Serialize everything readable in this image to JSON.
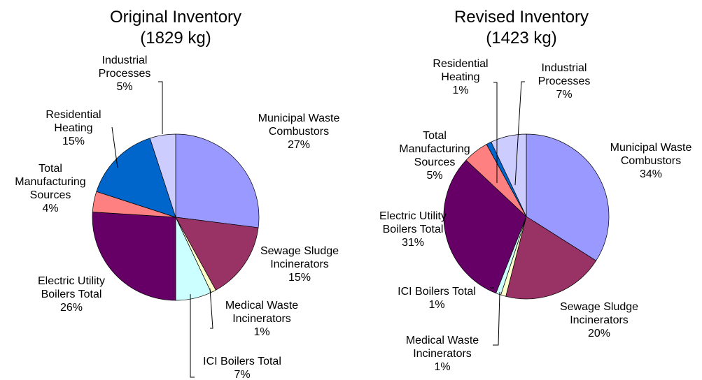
{
  "chart_data": [
    {
      "type": "pie",
      "title": "Original Inventory",
      "subtitle": "(1829 kg)",
      "categories": [
        "Municipal Waste Combustors",
        "Sewage Sludge Incinerators",
        "Medical Waste Incinerators",
        "ICI Boilers Total",
        "Electric Utility Boilers Total",
        "Total Manufacturing Sources",
        "Residential Heating",
        "Industrial Processes"
      ],
      "values": [
        27,
        15,
        1,
        7,
        26,
        4,
        15,
        5
      ],
      "value_labels": [
        "27%",
        "15%",
        "1%",
        "7%",
        "26%",
        "4%",
        "15%",
        "5%"
      ],
      "colors": [
        "#9999ff",
        "#993366",
        "#ffffcc",
        "#ccffff",
        "#660066",
        "#ff8080",
        "#0066cc",
        "#ccccff"
      ]
    },
    {
      "type": "pie",
      "title": "Revised Inventory",
      "subtitle": "(1423 kg)",
      "categories": [
        "Municipal Waste Combustors",
        "Sewage Sludge Incinerators",
        "Medical Waste Incinerators",
        "ICI Boilers Total",
        "Electric Utility Boilers Total",
        "Total Manufacturing Sources",
        "Residential Heating",
        "Industrial Processes"
      ],
      "values": [
        34,
        20,
        1,
        1,
        31,
        5,
        1,
        7
      ],
      "value_labels": [
        "34%",
        "20%",
        "1%",
        "1%",
        "31%",
        "5%",
        "1%",
        "7%"
      ],
      "colors": [
        "#9999ff",
        "#993366",
        "#ffffcc",
        "#ccffff",
        "#660066",
        "#ff8080",
        "#0066cc",
        "#ccccff"
      ]
    }
  ]
}
